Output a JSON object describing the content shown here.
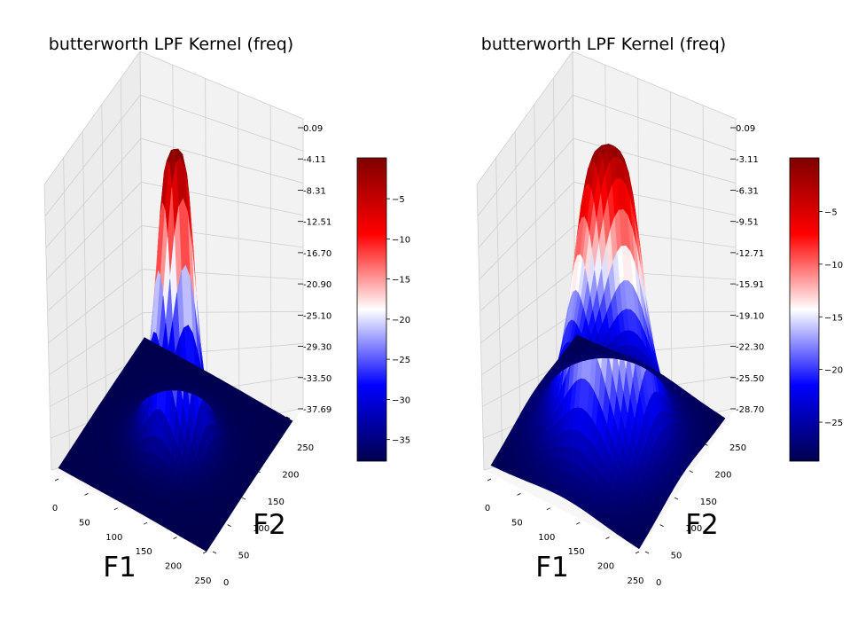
{
  "chart_data": [
    {
      "type": "surface3d",
      "title": "butterworth LPF Kernel (freq)",
      "xlabel": "F1",
      "ylabel": "F2",
      "x_ticks": [
        "0",
        "50",
        "100",
        "150",
        "200",
        "250"
      ],
      "y_ticks": [
        "0",
        "50",
        "100",
        "150",
        "200",
        "250"
      ],
      "z_ticks": [
        "0.09",
        "-4.11",
        "-8.31",
        "-12.51",
        "-16.70",
        "-20.90",
        "-25.10",
        "-29.30",
        "-33.50",
        "-37.69"
      ],
      "zlim": [
        -37.69,
        0.09
      ],
      "colormap": "seismic",
      "colorbar_ticks": [
        "-5",
        "-10",
        "-15",
        "-20",
        "-25",
        "-30",
        "-35"
      ],
      "colorbar_range": [
        -37.69,
        0.09
      ],
      "peak_value": 0.09,
      "edge_value": -37.69,
      "peak_width_fraction": 0.25
    },
    {
      "type": "surface3d",
      "title": "butterworth LPF Kernel (freq)",
      "xlabel": "F1",
      "ylabel": "F2",
      "x_ticks": [
        "0",
        "50",
        "100",
        "150",
        "200",
        "250"
      ],
      "y_ticks": [
        "0",
        "50",
        "100",
        "150",
        "200",
        "250"
      ],
      "z_ticks": [
        "0.09",
        "-3.11",
        "-6.31",
        "-9.51",
        "-12.71",
        "-15.91",
        "-19.10",
        "-22.30",
        "-25.50",
        "-28.70"
      ],
      "zlim": [
        -28.7,
        0.09
      ],
      "colormap": "seismic",
      "colorbar_ticks": [
        "-5",
        "-10",
        "-15",
        "-20",
        "-25"
      ],
      "colorbar_range": [
        -28.7,
        0.09
      ],
      "peak_value": 0.09,
      "edge_value": -28.7,
      "peak_width_fraction": 0.45
    }
  ]
}
